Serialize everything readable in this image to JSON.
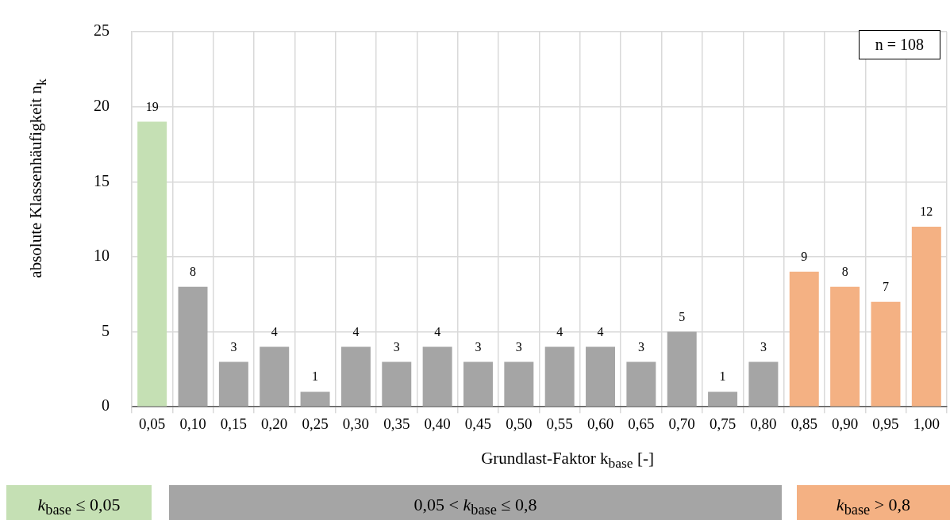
{
  "chart_data": {
    "type": "bar",
    "xlabel": "Grundlast-Faktor k$_{base}$ [-]",
    "ylabel": "absolute Klassenhäufigkeit n$_{k}$",
    "categories": [
      "0,05",
      "0,10",
      "0,15",
      "0,20",
      "0,25",
      "0,30",
      "0,35",
      "0,40",
      "0,45",
      "0,50",
      "0,55",
      "0,60",
      "0,65",
      "0,70",
      "0,75",
      "0,80",
      "0,85",
      "0,90",
      "0,95",
      "1,00"
    ],
    "series": [
      {
        "name": "k$_{base}$ ≤ 0,05",
        "color": "#c5e0b4",
        "values": [
          19,
          null,
          null,
          null,
          null,
          null,
          null,
          null,
          null,
          null,
          null,
          null,
          null,
          null,
          null,
          null,
          null,
          null,
          null,
          null
        ]
      },
      {
        "name": "0,05 < k$_{base}$ ≤ 0,8",
        "color": "#a5a5a5",
        "values": [
          null,
          8,
          3,
          4,
          1,
          4,
          3,
          4,
          3,
          3,
          4,
          4,
          3,
          5,
          1,
          3,
          null,
          null,
          null,
          null
        ]
      },
      {
        "name": "k$_{base}$ > 0,8",
        "color": "#f4b183",
        "values": [
          null,
          null,
          null,
          null,
          null,
          null,
          null,
          null,
          null,
          null,
          null,
          null,
          null,
          null,
          null,
          null,
          9,
          8,
          7,
          12
        ]
      }
    ],
    "ylim": [
      0,
      25
    ],
    "yticks": [
      0,
      5,
      10,
      15,
      20,
      25
    ],
    "grid": true,
    "data_labels": true,
    "legend": "bottom",
    "annotations": [
      "n = 108"
    ]
  }
}
